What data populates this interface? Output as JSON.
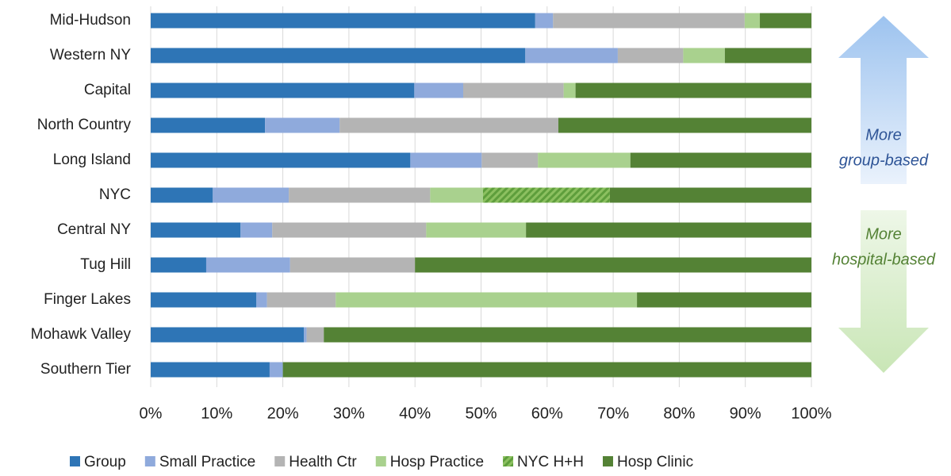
{
  "chart_data": {
    "type": "stacked-barh",
    "categories": [
      "Mid-Hudson",
      "Western NY",
      "Capital",
      "North Country",
      "Long Island",
      "NYC",
      "Central NY",
      "Tug Hill",
      "Finger Lakes",
      "Mohawk Valley",
      "Southern Tier"
    ],
    "series": [
      {
        "name": "Group",
        "color": "#2e75b6",
        "values": [
          58.2,
          56.7,
          39.9,
          17.3,
          39.3,
          9.4,
          13.6,
          8.4,
          16,
          23.2,
          18
        ]
      },
      {
        "name": "Small Practice",
        "color": "#8faadc",
        "values": [
          2.7,
          14,
          7.4,
          11.3,
          10.8,
          11.5,
          4.8,
          12.7,
          1.6,
          0.4,
          2
        ]
      },
      {
        "name": "Health Ctr",
        "color": "#b4b4b4",
        "values": [
          29,
          9.9,
          15.2,
          33.1,
          8.5,
          21.4,
          23.3,
          18.9,
          10.4,
          2.6,
          0
        ]
      },
      {
        "name": "Hosp Practice",
        "color": "#a9d18e",
        "values": [
          2.3,
          6.3,
          1.8,
          0,
          14,
          8,
          15.1,
          0,
          45.6,
          0,
          0
        ]
      },
      {
        "name": "NYC H+H",
        "color": "#70ad47",
        "hatch": true,
        "values": [
          0,
          0,
          0,
          0,
          0,
          19.2,
          0,
          0,
          0,
          0,
          0
        ]
      },
      {
        "name": "Hosp Clinic",
        "color": "#548235",
        "values": [
          7.8,
          13.1,
          35.7,
          38.3,
          27.4,
          30.5,
          43.2,
          60,
          26.4,
          73.8,
          80
        ]
      }
    ],
    "xlim": [
      0,
      100
    ],
    "xticks": [
      {
        "value": 0,
        "label": "0%"
      },
      {
        "value": 10,
        "label": "10%"
      },
      {
        "value": 20,
        "label": "20%"
      },
      {
        "value": 30,
        "label": "30%"
      },
      {
        "value": 40,
        "label": "40%"
      },
      {
        "value": 50,
        "label": "50%"
      },
      {
        "value": 60,
        "label": "60%"
      },
      {
        "value": 70,
        "label": "70%"
      },
      {
        "value": 80,
        "label": "80%"
      },
      {
        "value": 90,
        "label": "90%"
      },
      {
        "value": 100,
        "label": "100%"
      }
    ],
    "grid": true,
    "legend": "bottom",
    "annotations": [
      {
        "lines": [
          "More",
          "group-based"
        ]
      },
      {
        "lines": [
          "More",
          "hospital-based"
        ]
      }
    ]
  }
}
